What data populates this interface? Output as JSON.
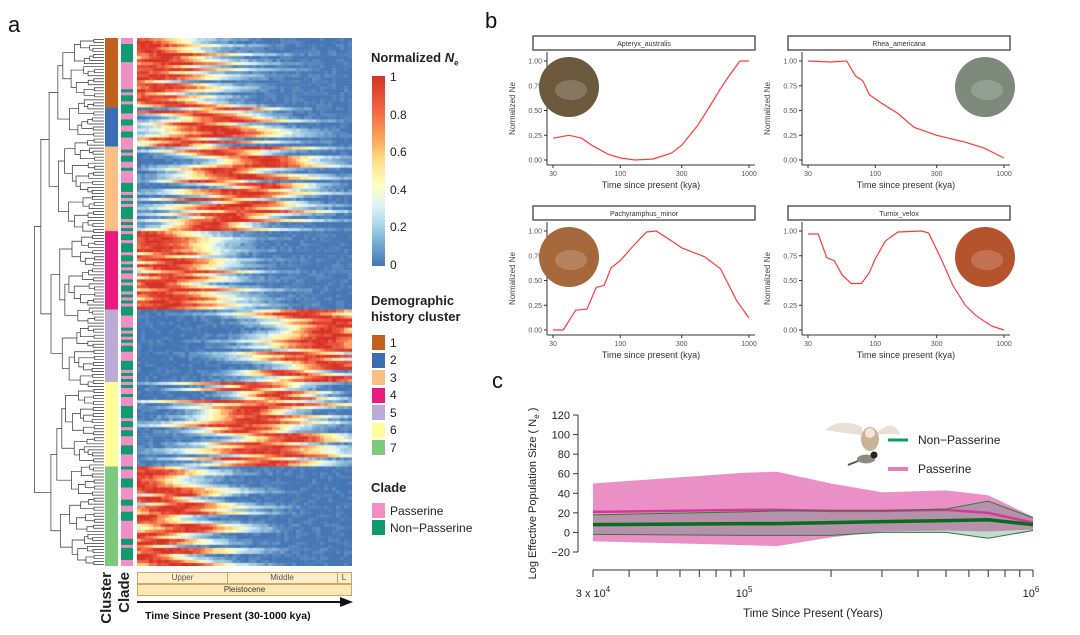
{
  "panel_labels": {
    "a": "a",
    "b": "b",
    "c": "c"
  },
  "colors": {
    "heat_low": "#4575b4",
    "heat_mid": "#ffffbf",
    "heat_high": "#d73027",
    "line_red": "#ff3b3b",
    "passerine": "#e87dbd",
    "passerine_line": "#d4399a",
    "non_passerine": "#0f9a6e",
    "non_passerine_line": "#0a6a1e"
  },
  "panel_a": {
    "bottom_labels": {
      "cluster": "Cluster",
      "clade": "Clade"
    },
    "epochs": {
      "upper": "Upper",
      "middle": "Middle",
      "lower": "L",
      "pleistocene": "Pleistocene"
    },
    "axis_title": "Time Since Present (30-1000 kya)",
    "legend_ne": {
      "title": "Normalized ",
      "title_italic": "N",
      "title_sub": "e",
      "ticks": [
        "1",
        "0.8",
        "0.6",
        "0.4",
        "0.2",
        "0"
      ]
    },
    "legend_cluster": {
      "title_line1": "Demographic",
      "title_line2": "history cluster",
      "items": [
        {
          "label": "1",
          "color": "#c0611f"
        },
        {
          "label": "2",
          "color": "#3a6db3"
        },
        {
          "label": "3",
          "color": "#fbbf86"
        },
        {
          "label": "4",
          "color": "#ec1a7e"
        },
        {
          "label": "5",
          "color": "#bcabd4"
        },
        {
          "label": "6",
          "color": "#fdfd99"
        },
        {
          "label": "7",
          "color": "#7fc97f"
        }
      ]
    },
    "legend_clade": {
      "title": "Clade",
      "items": [
        {
          "label": "Passerine",
          "color": "#ef8fc4"
        },
        {
          "label": "Non−Passerine",
          "color": "#109a6f"
        }
      ]
    }
  },
  "chart_data": [
    {
      "type": "heatmap",
      "title": "",
      "xlabel": "Time Since Present (30-1000 kya)",
      "colorbar_label": "Normalized Ne",
      "colorbar_range": [
        0,
        1
      ],
      "clusters": [
        {
          "cluster": "1",
          "peak_kya": 40,
          "share": 0.13
        },
        {
          "cluster": "2",
          "peak_kya": 80,
          "share": 0.075
        },
        {
          "cluster": "3",
          "peak_kya": 150,
          "share": 0.16
        },
        {
          "cluster": "4",
          "peak_kya": 45,
          "share": 0.15
        },
        {
          "cluster": "5",
          "peak_kya": 550,
          "share": 0.135
        },
        {
          "cluster": "6",
          "peak_kya": 220,
          "share": 0.16
        },
        {
          "cluster": "7",
          "peak_kya": 40,
          "share": 0.19
        }
      ]
    },
    {
      "type": "line",
      "title": "Apteryx_australis",
      "xlabel": "Time since present (kya)",
      "ylabel": "Normalized Ne",
      "xscale": "log",
      "xlim": [
        30,
        1000
      ],
      "ylim": [
        0,
        1
      ],
      "xticks": [
        "30",
        "100",
        "300",
        "1000"
      ],
      "yticks": [
        "0.00",
        "0.25",
        "0.50",
        "0.75",
        "1.00"
      ],
      "x": [
        30,
        40,
        50,
        60,
        80,
        100,
        130,
        180,
        250,
        300,
        400,
        500,
        600,
        700,
        850,
        1000
      ],
      "y": [
        0.22,
        0.25,
        0.22,
        0.15,
        0.06,
        0.02,
        0.0,
        0.01,
        0.07,
        0.15,
        0.35,
        0.55,
        0.72,
        0.85,
        1.0,
        1.0
      ],
      "photo_side": "left",
      "photo_color": "#6b5a3e"
    },
    {
      "type": "line",
      "title": "Rhea_americana",
      "xlabel": "Time since present (kya)",
      "ylabel": "Normalized Ne",
      "xscale": "log",
      "xlim": [
        30,
        1000
      ],
      "ylim": [
        0,
        1
      ],
      "xticks": [
        "30",
        "100",
        "300",
        "1000"
      ],
      "yticks": [
        "0.00",
        "0.25",
        "0.50",
        "0.75",
        "1.00"
      ],
      "x": [
        30,
        45,
        60,
        70,
        80,
        90,
        110,
        150,
        200,
        300,
        500,
        700,
        1000
      ],
      "y": [
        1.0,
        0.99,
        1.0,
        0.85,
        0.8,
        0.66,
        0.58,
        0.47,
        0.33,
        0.25,
        0.18,
        0.12,
        0.02
      ],
      "photo_side": "right",
      "photo_color": "#7c8a7a"
    },
    {
      "type": "line",
      "title": "Pachyramphus_minor",
      "xlabel": "Time since present (kya)",
      "ylabel": "Normalized Ne",
      "xscale": "log",
      "xlim": [
        30,
        1000
      ],
      "ylim": [
        0,
        1
      ],
      "xticks": [
        "30",
        "100",
        "300",
        "1000"
      ],
      "yticks": [
        "0.00",
        "0.25",
        "0.50",
        "0.75",
        "1.00"
      ],
      "x": [
        30,
        36,
        45,
        55,
        65,
        75,
        85,
        100,
        130,
        160,
        190,
        250,
        300,
        450,
        600,
        800,
        1000
      ],
      "y": [
        0,
        0,
        0.2,
        0.21,
        0.43,
        0.45,
        0.63,
        0.7,
        0.87,
        0.99,
        1.0,
        0.9,
        0.83,
        0.74,
        0.62,
        0.3,
        0.12
      ],
      "photo_side": "left",
      "photo_color": "#a5683a"
    },
    {
      "type": "line",
      "title": "Turnix_velox",
      "xlabel": "Time since present (kya)",
      "ylabel": "Normalized Ne",
      "xscale": "log",
      "xlim": [
        30,
        1000
      ],
      "ylim": [
        0,
        1
      ],
      "xticks": [
        "30",
        "100",
        "300",
        "1000"
      ],
      "yticks": [
        "0.00",
        "0.25",
        "0.50",
        "0.75",
        "1.00"
      ],
      "x": [
        30,
        36,
        42,
        48,
        55,
        65,
        78,
        90,
        100,
        120,
        150,
        230,
        260,
        330,
        400,
        500,
        600,
        800,
        1000
      ],
      "y": [
        0.97,
        0.97,
        0.73,
        0.7,
        0.56,
        0.47,
        0.47,
        0.58,
        0.72,
        0.9,
        0.99,
        1.0,
        0.98,
        0.7,
        0.45,
        0.25,
        0.15,
        0.04,
        0.0
      ],
      "photo_side": "right",
      "photo_color": "#b5532c"
    },
    {
      "type": "area",
      "title": "",
      "xlabel": "Time Since Present (Years)",
      "ylabel": "Log Effective Population Size ( N",
      "ylabel_sub": "e",
      "ylabel_close": " )",
      "xscale": "log",
      "xlim": [
        30000,
        1000000
      ],
      "ylim": [
        -20,
        120
      ],
      "xtick_labels": {
        "left": "3 x 10",
        "left_exp": "4",
        "mid": "10",
        "mid_exp": "5",
        "right": "10",
        "right_exp": "6"
      },
      "yticks": [
        "−20",
        "0",
        "20",
        "40",
        "60",
        "80",
        "100",
        "120"
      ],
      "legend": "top-right",
      "series": [
        {
          "name": "Passerine",
          "x": [
            30000,
            100000,
            130000,
            200000,
            300000,
            500000,
            700000,
            1000000
          ],
          "mean": [
            21,
            23,
            23,
            22,
            22,
            23,
            20,
            10
          ],
          "upper": [
            50,
            61,
            62,
            50,
            41,
            43,
            38,
            16
          ],
          "lower": [
            -9,
            -13,
            -14,
            -5,
            1,
            2,
            1,
            3
          ]
        },
        {
          "name": "Non−Passerine",
          "x": [
            30000,
            100000,
            130000,
            200000,
            300000,
            500000,
            700000,
            1000000
          ],
          "mean": [
            8,
            9,
            9,
            10,
            11,
            12,
            13,
            8
          ],
          "upper": [
            18,
            21,
            22,
            22,
            22,
            24,
            32,
            15
          ],
          "lower": [
            -2,
            -3,
            -3,
            -3,
            0,
            0,
            -6,
            2
          ]
        }
      ]
    }
  ]
}
